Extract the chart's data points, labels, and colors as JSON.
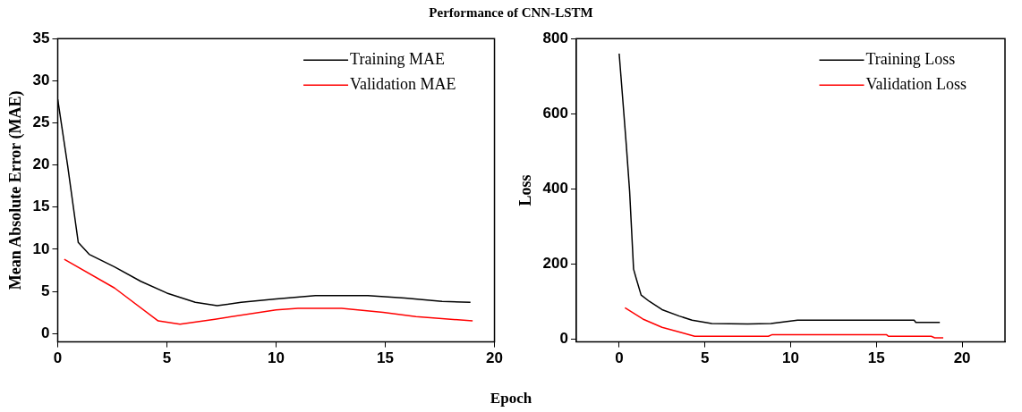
{
  "chart_data": [
    {
      "type": "line",
      "title": "Performance of CNN-LSTM",
      "xlabel": "Epoch",
      "ylabel": "Mean Absolute Error (MAE)",
      "xlim": [
        0,
        20
      ],
      "xticks": [
        0,
        5,
        10,
        15,
        20
      ],
      "ylim": [
        -1,
        35
      ],
      "yticks": [
        0,
        5,
        10,
        15,
        20,
        25,
        30,
        35
      ],
      "grid": false,
      "legend": "top right",
      "marker": "none",
      "series": [
        {
          "name": "Training MAE",
          "color": "#000000",
          "x": [
            0,
            0.45,
            0.94,
            1.44,
            2.6,
            3.8,
            5,
            6.3,
            7.3,
            8.4,
            10,
            11.8,
            14.2,
            15.9,
            17.6,
            18.9
          ],
          "values": [
            27.8,
            20,
            10.8,
            9.4,
            7.9,
            6.2,
            4.8,
            3.7,
            3.3,
            3.7,
            4.1,
            4.5,
            4.5,
            4.2,
            3.8,
            3.7
          ]
        },
        {
          "name": "Validation MAE",
          "color": "#ff0000",
          "x": [
            0.3,
            2.6,
            4.6,
            5.6,
            7.2,
            10,
            11,
            13,
            14.9,
            16.4,
            19
          ],
          "values": [
            8.8,
            5.4,
            1.5,
            1.1,
            1.7,
            2.8,
            3.0,
            3.0,
            2.5,
            2.0,
            1.5
          ]
        }
      ]
    },
    {
      "type": "line",
      "ylabel": "Loss",
      "xlim": [
        -2.5,
        22.5
      ],
      "xticks": [
        0,
        5,
        10,
        15,
        20
      ],
      "ylim": [
        -8,
        800
      ],
      "yticks": [
        0,
        200,
        400,
        600,
        800
      ],
      "grid": false,
      "legend": "top right",
      "marker": "none",
      "series": [
        {
          "name": "Training Loss",
          "color": "#000000",
          "x": [
            0,
            0.23,
            0.42,
            0.61,
            0.84,
            1,
            1.28,
            1.76,
            2.5,
            3.5,
            4.25,
            5.4,
            7.5,
            8.85,
            10.4,
            13.6,
            17.2,
            17.3,
            18.7
          ],
          "values": [
            760,
            626,
            514,
            393,
            186,
            160,
            117,
            100,
            78,
            61,
            50,
            41,
            40,
            41,
            50,
            50,
            50,
            44,
            44
          ]
        },
        {
          "name": "Validation Loss",
          "color": "#ff0000",
          "x": [
            0.34,
            1.38,
            2.5,
            3.7,
            4.4,
            8.7,
            8.9,
            15.6,
            15.7,
            18.2,
            18.4,
            18.9
          ],
          "values": [
            83,
            53,
            31,
            16,
            7,
            7,
            11,
            11,
            7,
            7,
            3,
            3
          ]
        }
      ]
    }
  ]
}
